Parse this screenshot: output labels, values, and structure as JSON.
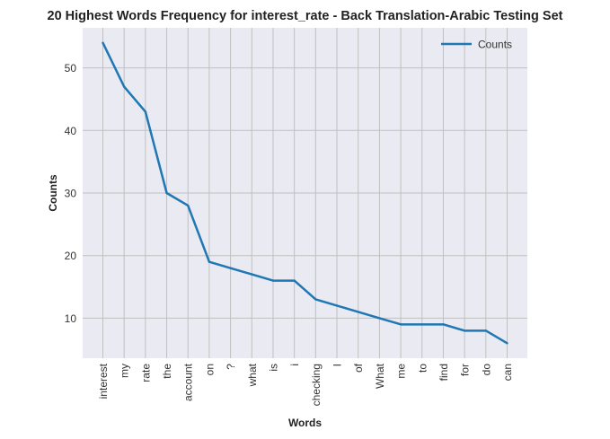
{
  "chart_data": {
    "type": "line",
    "title": "20 Highest Words Frequency for interest_rate - Back Translation-Arabic Testing Set",
    "xlabel": "Words",
    "ylabel": "Counts",
    "categories": [
      "interest",
      "my",
      "rate",
      "the",
      "account",
      "on",
      "?",
      "what",
      "is",
      "i",
      "checking",
      "I",
      "of",
      "What",
      "me",
      "to",
      "find",
      "for",
      "do",
      "can"
    ],
    "series": [
      {
        "name": "Counts",
        "values": [
          54,
          47,
          43,
          30,
          28,
          19,
          18,
          17,
          16,
          16,
          13,
          12,
          11,
          10,
          9,
          9,
          9,
          8,
          8,
          6
        ]
      }
    ],
    "yticks": [
      10,
      20,
      30,
      40,
      50
    ],
    "ylim": [
      3.6,
      56.4
    ],
    "grid": true,
    "legend_position": "top-right",
    "colors": {
      "line": "#1f77b4",
      "plot_bg": "#eaeaf2",
      "grid": "#c0c0c0"
    }
  }
}
